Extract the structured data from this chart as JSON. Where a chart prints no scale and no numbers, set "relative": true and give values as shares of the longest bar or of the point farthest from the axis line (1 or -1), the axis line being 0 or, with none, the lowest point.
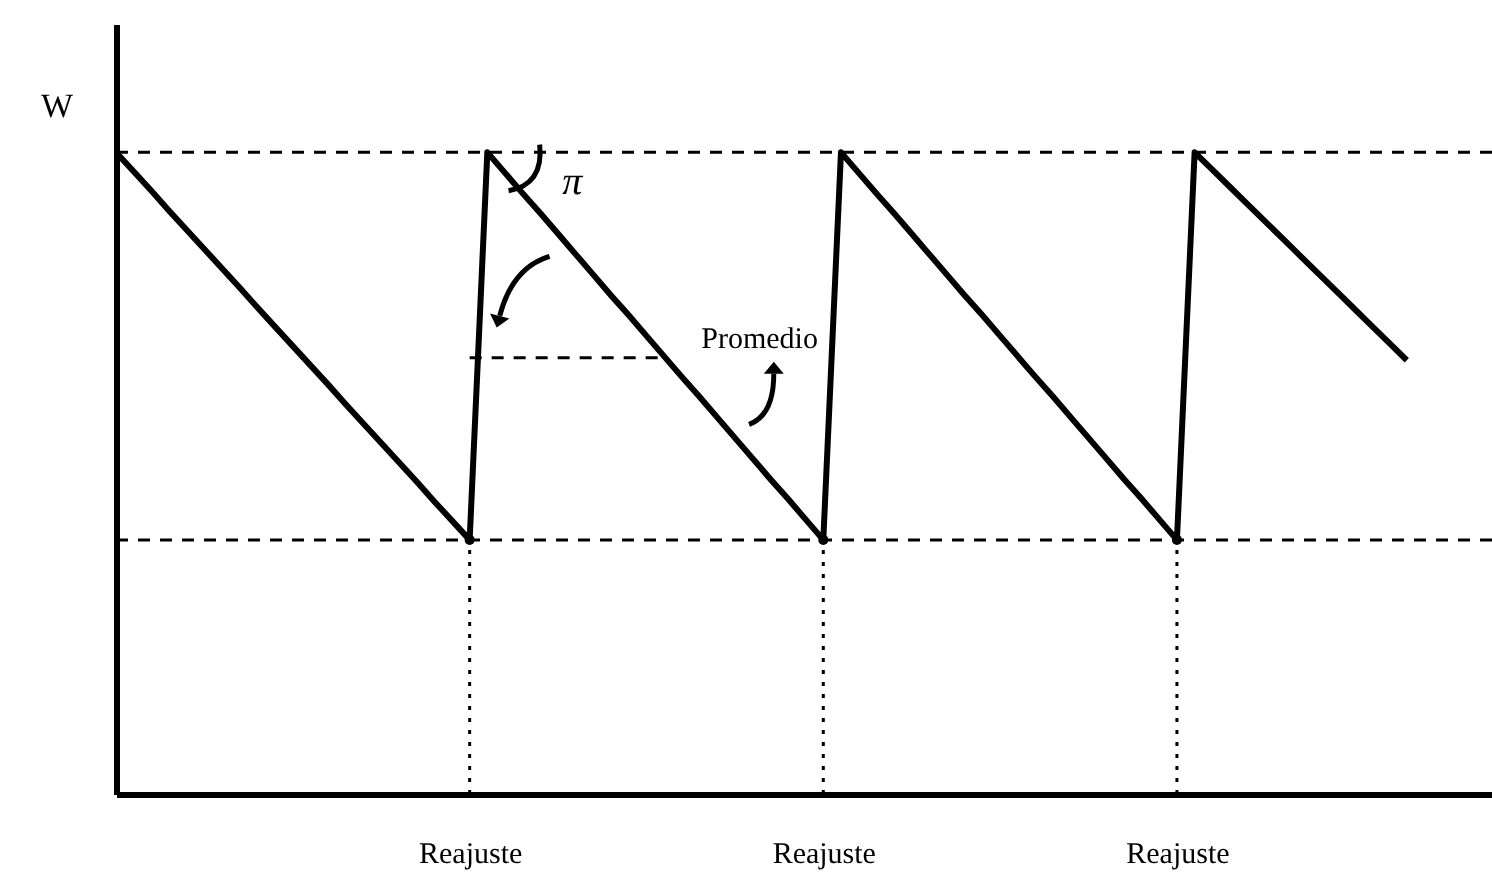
{
  "chart_data": {
    "type": "line",
    "relative": true,
    "ylabel": "W",
    "categories": [
      null,
      null,
      null,
      null,
      null,
      null,
      null,
      null,
      null,
      null,
      null,
      null,
      null,
      null,
      null,
      null,
      null,
      null,
      null,
      null,
      "Reajuste",
      null,
      null,
      null,
      null,
      null,
      null,
      null,
      null,
      null,
      null,
      null,
      null,
      null,
      null,
      null,
      null,
      null,
      null,
      null,
      "Reajuste",
      null,
      null,
      null,
      null,
      null,
      null,
      null,
      null,
      null,
      null,
      null,
      null,
      null,
      null,
      null,
      null,
      null,
      null,
      null,
      "Reajuste",
      null,
      null,
      null,
      null,
      null,
      null,
      null,
      null,
      null,
      null,
      null,
      null,
      null
    ],
    "series": [
      {
        "color": "#000000",
        "line_style": "solid",
        "values": [
          1,
          0.97,
          0.94,
          0.909,
          0.879,
          0.849,
          0.819,
          0.789,
          0.758,
          0.728,
          0.698,
          0.668,
          0.638,
          0.607,
          0.577,
          0.547,
          0.517,
          0.487,
          0.456,
          0.426,
          0.396,
          1,
          0.968,
          0.936,
          0.905,
          0.873,
          0.841,
          0.809,
          0.777,
          0.746,
          0.714,
          0.682,
          0.65,
          0.619,
          0.587,
          0.555,
          0.523,
          0.491,
          0.46,
          0.428,
          0.396,
          1,
          0.968,
          0.936,
          0.905,
          0.873,
          0.841,
          0.809,
          0.777,
          0.746,
          0.714,
          0.682,
          0.65,
          0.619,
          0.587,
          0.555,
          0.523,
          0.491,
          0.46,
          0.428,
          0.396,
          1,
          0.973,
          0.946,
          0.919,
          0.892,
          0.865,
          0.838,
          0.811,
          0.784,
          0.757,
          0.73,
          0.703,
          0.676
        ]
      },
      {
        "type": "lollipop",
        "color": "#000000",
        "line_style": "dotted",
        "marker": "circle",
        "values": [
          null,
          null,
          null,
          null,
          null,
          null,
          null,
          null,
          null,
          null,
          null,
          null,
          null,
          null,
          null,
          null,
          null,
          null,
          null,
          null,
          0.396,
          null,
          null,
          null,
          null,
          null,
          null,
          null,
          null,
          null,
          null,
          null,
          null,
          null,
          null,
          null,
          null,
          null,
          null,
          null,
          0.396,
          null,
          null,
          null,
          null,
          null,
          null,
          null,
          null,
          null,
          null,
          null,
          null,
          null,
          null,
          null,
          null,
          null,
          null,
          null,
          0.396,
          null,
          null,
          null,
          null,
          null,
          null,
          null,
          null,
          null,
          null,
          null,
          null,
          null
        ]
      },
      {
        "color": "#000000",
        "line_style": "dashed",
        "values": [
          null,
          null,
          null,
          null,
          null,
          null,
          null,
          null,
          null,
          null,
          null,
          null,
          null,
          null,
          null,
          null,
          null,
          null,
          null,
          null,
          0.68,
          0.68,
          0.68,
          0.68,
          0.68,
          0.68,
          0.68,
          0.68,
          0.68,
          0.68,
          0.68,
          0.68,
          null,
          null,
          null,
          null,
          null,
          null,
          null,
          null,
          null,
          null,
          null,
          null,
          null,
          null,
          null,
          null,
          null,
          null,
          null,
          null,
          null,
          null,
          null,
          null,
          null,
          null,
          null,
          null,
          null,
          null,
          null,
          null,
          null,
          null,
          null,
          null,
          null,
          null,
          null,
          null,
          null,
          null
        ]
      }
    ],
    "ref_lines": [
      {
        "axis": "y",
        "value": 1,
        "color": "#000000",
        "line_style": "dashed"
      },
      {
        "axis": "y",
        "value": 0.396,
        "color": "#000000",
        "line_style": "dashed"
      }
    ],
    "annotations": [
      "Promedio",
      "π"
    ]
  }
}
